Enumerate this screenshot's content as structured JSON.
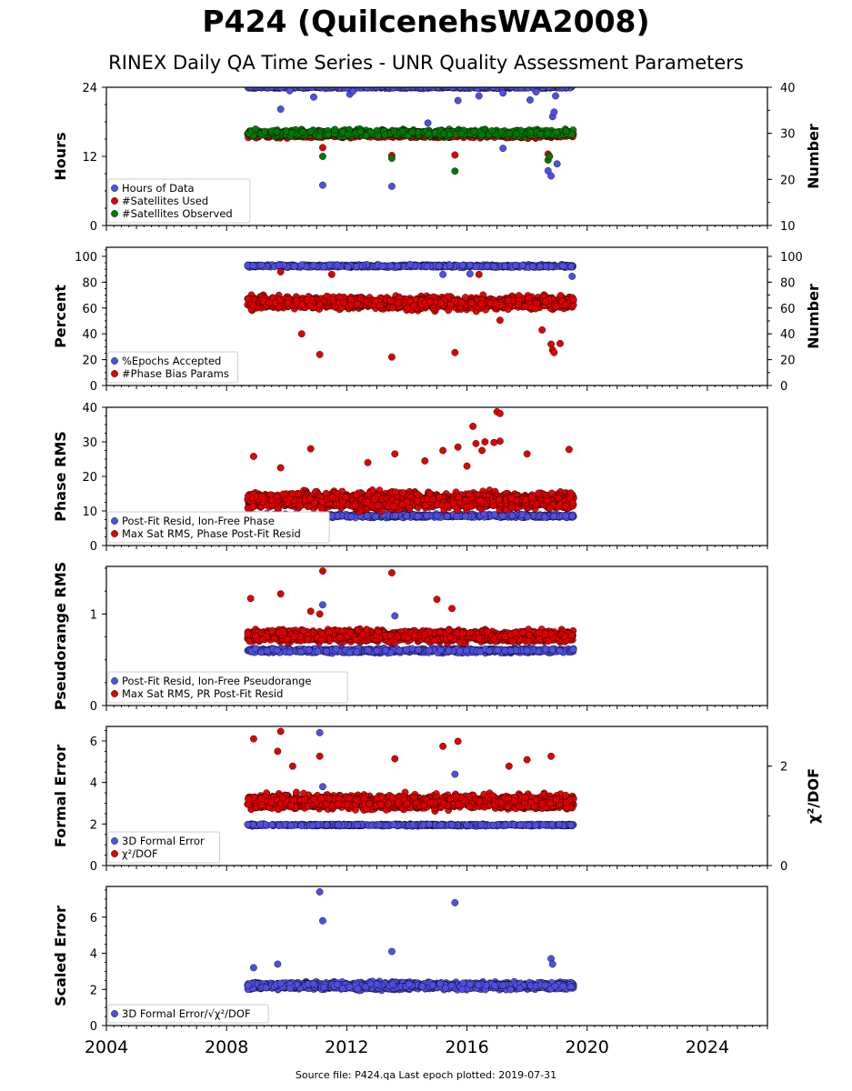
{
  "header": {
    "title": "P424 (QuilcenehsWA2008)",
    "subtitle": "RINEX Daily QA Time Series - UNR Quality Assessment Parameters"
  },
  "footer": {
    "source_text": "Source file: P424.qa Last epoch plotted: 2019-07-31"
  },
  "colors": {
    "blue": "#4f4fe6",
    "red": "#e00000",
    "green": "#007a00"
  },
  "chart_data": [
    {
      "type": "scatter",
      "id": "hours",
      "ylabel": "Hours",
      "y2label": "Number",
      "xlim": [
        2004,
        2026
      ],
      "ylim": [
        0,
        24
      ],
      "yticks": [
        0,
        12,
        24
      ],
      "y2lim": [
        10,
        40
      ],
      "y2ticks": [
        10,
        20,
        30,
        40
      ],
      "legend_position": "lower-left",
      "series": [
        {
          "name": "Hours of Data",
          "color": "blue",
          "axis": "left",
          "band": {
            "x": [
              2008.7,
              2019.55
            ],
            "center": 24,
            "spread": 0.25,
            "density": 90
          },
          "points": [
            [
              2009.8,
              20.2
            ],
            [
              2010.1,
              23.4
            ],
            [
              2010.9,
              22.3
            ],
            [
              2011.2,
              7.0
            ],
            [
              2012.1,
              22.8
            ],
            [
              2012.2,
              23.3
            ],
            [
              2013.5,
              6.8
            ],
            [
              2014.7,
              17.8
            ],
            [
              2015.7,
              21.7
            ],
            [
              2016.4,
              22.5
            ],
            [
              2017.2,
              13.4
            ],
            [
              2017.2,
              23.0
            ],
            [
              2018.1,
              21.8
            ],
            [
              2018.3,
              23.2
            ],
            [
              2018.7,
              9.5
            ],
            [
              2018.8,
              8.6
            ],
            [
              2018.85,
              18.9
            ],
            [
              2018.9,
              19.7
            ],
            [
              2018.95,
              22.5
            ],
            [
              2019.0,
              10.7
            ]
          ]
        },
        {
          "name": "#Satellites Used",
          "color": "red",
          "axis": "right",
          "band": {
            "x": [
              2008.7,
              2019.55
            ],
            "center": 29.6,
            "spread": 0.9,
            "density": 90
          },
          "points": [
            [
              2009.9,
              30.0
            ],
            [
              2011.2,
              26.9
            ],
            [
              2013.5,
              25.2
            ],
            [
              2015.6,
              25.3
            ],
            [
              2018.7,
              25.5
            ],
            [
              2018.75,
              29.4
            ]
          ]
        },
        {
          "name": "#Satellites Observed",
          "color": "green",
          "axis": "right",
          "band": {
            "x": [
              2008.7,
              2019.55
            ],
            "center": 30.1,
            "spread": 1.0,
            "density": 90
          },
          "points": [
            [
              2011.2,
              25.0
            ],
            [
              2013.5,
              24.6
            ],
            [
              2015.6,
              21.8
            ],
            [
              2018.7,
              24.2
            ],
            [
              2018.75,
              25.0
            ]
          ]
        }
      ]
    },
    {
      "type": "scatter",
      "id": "percent",
      "ylabel": "Percent",
      "y2label": "Number",
      "xlim": [
        2004,
        2026
      ],
      "ylim": [
        0,
        107
      ],
      "yticks": [
        0,
        20,
        40,
        60,
        80,
        100
      ],
      "y2lim": [
        0,
        107
      ],
      "y2ticks": [
        0,
        20,
        40,
        60,
        80,
        100
      ],
      "legend_position": "lower-left",
      "series": [
        {
          "name": "%Epochs Accepted",
          "color": "blue",
          "axis": "left",
          "band": {
            "x": [
              2008.7,
              2019.55
            ],
            "center": 92.5,
            "spread": 1.4,
            "density": 90
          },
          "points": [
            [
              2015.2,
              86.0
            ],
            [
              2016.1,
              86.5
            ],
            [
              2019.5,
              84.5
            ]
          ]
        },
        {
          "name": "#Phase Bias Params",
          "color": "red",
          "axis": "right",
          "band": {
            "x": [
              2008.7,
              2019.55
            ],
            "center": 64,
            "spread": 7,
            "density": 160
          },
          "points": [
            [
              2010.5,
              40.0
            ],
            [
              2011.1,
              24.0
            ],
            [
              2013.5,
              22.0
            ],
            [
              2015.6,
              25.5
            ],
            [
              2017.1,
              50.5
            ],
            [
              2018.5,
              43.0
            ],
            [
              2018.8,
              32.0
            ],
            [
              2018.85,
              27.5
            ],
            [
              2018.9,
              25.5
            ],
            [
              2019.1,
              32.5
            ],
            [
              2009.8,
              88.0
            ],
            [
              2011.5,
              86.0
            ],
            [
              2016.4,
              86.0
            ]
          ]
        }
      ]
    },
    {
      "type": "scatter",
      "id": "phase-rms",
      "ylabel": "Phase RMS",
      "xlim": [
        2004,
        2026
      ],
      "ylim": [
        0,
        40
      ],
      "yticks": [
        0,
        10,
        20,
        30,
        40
      ],
      "legend_position": "lower-left",
      "series": [
        {
          "name": "Post-Fit Resid, Ion-Free Phase",
          "color": "blue",
          "axis": "left",
          "band": {
            "x": [
              2008.7,
              2019.55
            ],
            "center": 8.6,
            "spread": 0.7,
            "density": 90
          },
          "points": []
        },
        {
          "name": "Max Sat RMS, Phase Post-Fit Resid",
          "color": "red",
          "axis": "left",
          "band": {
            "x": [
              2008.7,
              2019.55
            ],
            "center": 13,
            "spread": 3.4,
            "density": 190
          },
          "points": [
            [
              2008.9,
              25.8
            ],
            [
              2009.8,
              22.5
            ],
            [
              2010.8,
              28.0
            ],
            [
              2012.7,
              24.0
            ],
            [
              2013.6,
              26.5
            ],
            [
              2014.6,
              24.5
            ],
            [
              2015.2,
              27.5
            ],
            [
              2015.7,
              28.5
            ],
            [
              2016.0,
              23.0
            ],
            [
              2016.3,
              29.5
            ],
            [
              2016.2,
              34.5
            ],
            [
              2016.5,
              27.5
            ],
            [
              2016.6,
              30.0
            ],
            [
              2016.9,
              29.8
            ],
            [
              2017.0,
              38.7
            ],
            [
              2017.1,
              38.2
            ],
            [
              2017.1,
              30.2
            ],
            [
              2018.0,
              26.5
            ],
            [
              2019.4,
              27.8
            ]
          ]
        }
      ]
    },
    {
      "type": "scatter",
      "id": "pseudorange-rms",
      "ylabel": "Pseudorange RMS",
      "xlim": [
        2004,
        2026
      ],
      "ylim": [
        0,
        1.52
      ],
      "yticks": [
        0,
        1
      ],
      "legend_position": "lower-left",
      "series": [
        {
          "name": "Post-Fit Resid, Ion-Free Pseudorange",
          "color": "blue",
          "axis": "left",
          "band": {
            "x": [
              2008.7,
              2019.55
            ],
            "center": 0.6,
            "spread": 0.035,
            "density": 100
          },
          "points": [
            [
              2011.2,
              1.1
            ],
            [
              2013.6,
              0.98
            ]
          ]
        },
        {
          "name": "Max Sat RMS, PR Post-Fit Resid",
          "color": "red",
          "axis": "left",
          "band": {
            "x": [
              2008.7,
              2019.55
            ],
            "center": 0.76,
            "spread": 0.09,
            "density": 180
          },
          "points": [
            [
              2011.2,
              1.47
            ],
            [
              2013.5,
              1.45
            ],
            [
              2015.0,
              1.16
            ],
            [
              2015.5,
              1.06
            ],
            [
              2008.8,
              1.17
            ],
            [
              2009.8,
              1.22
            ],
            [
              2010.8,
              1.03
            ],
            [
              2011.1,
              1.0
            ]
          ]
        }
      ]
    },
    {
      "type": "scatter",
      "id": "formal-error",
      "ylabel": "Formal Error",
      "y2label": "χ²/DOF",
      "xlim": [
        2004,
        2026
      ],
      "ylim": [
        0,
        6.7
      ],
      "yticks": [
        0,
        2,
        4,
        6
      ],
      "y2lim": [
        0,
        2.8
      ],
      "y2ticks": [
        0,
        2
      ],
      "legend_position": "lower-left",
      "series": [
        {
          "name": "3D Formal Error",
          "color": "blue",
          "axis": "left",
          "band": {
            "x": [
              2008.7,
              2019.55
            ],
            "center": 1.95,
            "spread": 0.06,
            "density": 90
          },
          "points": [
            [
              2011.1,
              6.4
            ],
            [
              2011.2,
              3.8
            ],
            [
              2015.6,
              4.4
            ]
          ]
        },
        {
          "name": "χ²/DOF",
          "color": "red",
          "axis": "right",
          "band": {
            "x": [
              2008.7,
              2019.55
            ],
            "center": 1.28,
            "spread": 0.2,
            "density": 190
          },
          "points": [
            [
              2008.9,
              2.55
            ],
            [
              2009.8,
              2.7
            ],
            [
              2009.7,
              2.3
            ],
            [
              2011.1,
              2.2
            ],
            [
              2013.6,
              2.15
            ],
            [
              2015.2,
              2.4
            ],
            [
              2015.7,
              2.5
            ],
            [
              2017.4,
              2.0
            ],
            [
              2018.0,
              2.13
            ],
            [
              2018.8,
              2.2
            ],
            [
              2010.2,
              2.0
            ]
          ]
        }
      ]
    },
    {
      "type": "scatter",
      "id": "scaled-error",
      "ylabel": "Scaled Error",
      "xlim": [
        2004,
        2026
      ],
      "ylim": [
        0,
        7.7
      ],
      "yticks": [
        0,
        2,
        4,
        6
      ],
      "xticks": [
        2004,
        2008,
        2012,
        2016,
        2020,
        2024
      ],
      "legend_position": "lower-left",
      "series": [
        {
          "name": "3D Formal Error/√χ²/DOF",
          "color": "blue",
          "axis": "left",
          "band": {
            "x": [
              2008.7,
              2019.55
            ],
            "center": 2.2,
            "spread": 0.28,
            "density": 180
          },
          "points": [
            [
              2011.1,
              7.4
            ],
            [
              2011.2,
              5.8
            ],
            [
              2013.5,
              4.1
            ],
            [
              2015.6,
              6.8
            ],
            [
              2009.7,
              3.4
            ],
            [
              2008.9,
              3.2
            ],
            [
              2018.8,
              3.7
            ],
            [
              2018.85,
              3.4
            ]
          ]
        }
      ]
    }
  ]
}
